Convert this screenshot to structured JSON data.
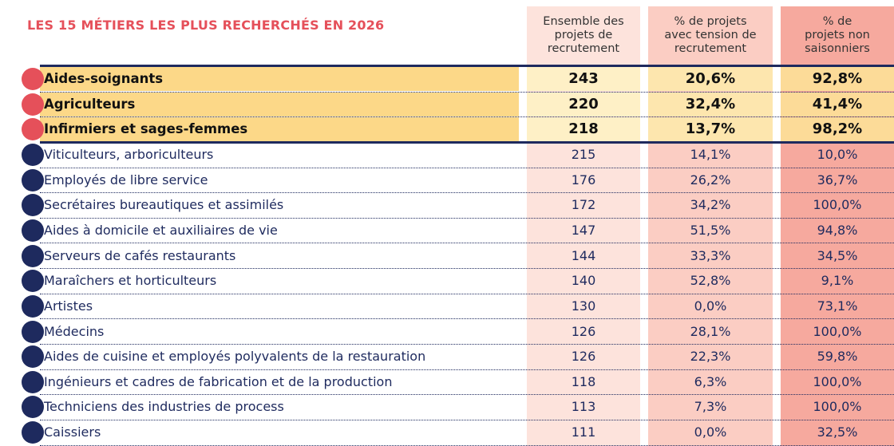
{
  "header": {
    "title": "LES 15 MÉTIERS LES PLUS RECHERCHÉS EN 2026",
    "columns": [
      "Ensemble des\nprojets de\nrecrutement",
      "% de projets\navec tension de\nrecrutement",
      "% de\nprojets non\nsaisonniers"
    ]
  },
  "table": {
    "rows": [
      {
        "label": "Aides-soignants",
        "values": [
          "243",
          "20,6%",
          "92,8%"
        ]
      },
      {
        "label": "Agriculteurs",
        "values": [
          "220",
          "32,4%",
          "41,4%"
        ]
      },
      {
        "label": "Infirmiers et sages-femmes",
        "values": [
          "218",
          "13,7%",
          "98,2%"
        ]
      },
      {
        "label": "Viticulteurs, arboriculteurs",
        "values": [
          "215",
          "14,1%",
          "10,0%"
        ]
      },
      {
        "label": "Employés de libre service",
        "values": [
          "176",
          "26,2%",
          "36,7%"
        ]
      },
      {
        "label": "Secrétaires bureautiques et assimilés",
        "values": [
          "172",
          "34,2%",
          "100,0%"
        ]
      },
      {
        "label": "Aides à domicile et auxiliaires de vie",
        "values": [
          "147",
          "51,5%",
          "94,8%"
        ]
      },
      {
        "label": "Serveurs de cafés restaurants",
        "values": [
          "144",
          "33,3%",
          "34,5%"
        ]
      },
      {
        "label": "Maraîchers et horticulteurs",
        "values": [
          "140",
          "52,8%",
          "9,1%"
        ]
      },
      {
        "label": "Artistes",
        "values": [
          "130",
          "0,0%",
          "73,1%"
        ]
      },
      {
        "label": "Médecins",
        "values": [
          "126",
          "28,1%",
          "100,0%"
        ]
      },
      {
        "label": "Aides de cuisine et employés polyvalents de la restauration",
        "values": [
          "126",
          "22,3%",
          "59,8%"
        ]
      },
      {
        "label": "Ingénieurs et cadres de fabrication et de la production",
        "values": [
          "118",
          "6,3%",
          "100,0%"
        ]
      },
      {
        "label": "Techniciens des industries de process",
        "values": [
          "113",
          "7,3%",
          "100,0%"
        ]
      },
      {
        "label": "Caissiers",
        "values": [
          "111",
          "0,0%",
          "32,5%"
        ]
      }
    ]
  }
}
